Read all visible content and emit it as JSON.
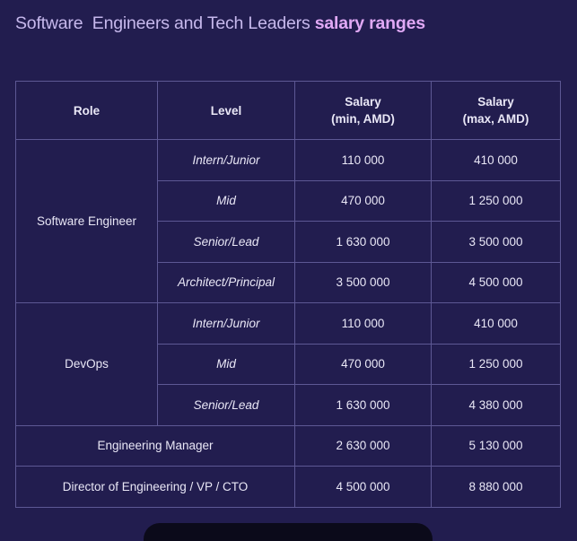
{
  "title": {
    "prefix": "Software  Engineers and Tech Leaders ",
    "highlight": "salary ranges"
  },
  "headers": {
    "role": "Role",
    "level": "Level",
    "salary_min_line1": "Salary",
    "salary_min_line2": "(min, AMD)",
    "salary_max_line1": "Salary",
    "salary_max_line2": "(max, AMD)"
  },
  "rows": {
    "software_engineer": {
      "role": "Software Engineer",
      "levels": [
        {
          "level": "Intern/Junior",
          "min": "110 000",
          "max": "410 000"
        },
        {
          "level": "Mid",
          "min": "470 000",
          "max": "1 250 000"
        },
        {
          "level": "Senior/Lead",
          "min": "1 630 000",
          "max": "3 500 000"
        },
        {
          "level": "Architect/Principal",
          "min": "3 500 000",
          "max": "4 500 000"
        }
      ]
    },
    "devops": {
      "role": "DevOps",
      "levels": [
        {
          "level": "Intern/Junior",
          "min": "110 000",
          "max": "410 000"
        },
        {
          "level": "Mid",
          "min": "470 000",
          "max": "1 250 000"
        },
        {
          "level": "Senior/Lead",
          "min": "1 630 000",
          "max": "4 380 000"
        }
      ]
    },
    "engineering_manager": {
      "role": "Engineering Manager",
      "min": "2 630 000",
      "max": "5 130 000"
    },
    "director": {
      "role": "Director of Engineering / VP / CTO",
      "min": "4 500 000",
      "max": "8 880 000"
    }
  }
}
